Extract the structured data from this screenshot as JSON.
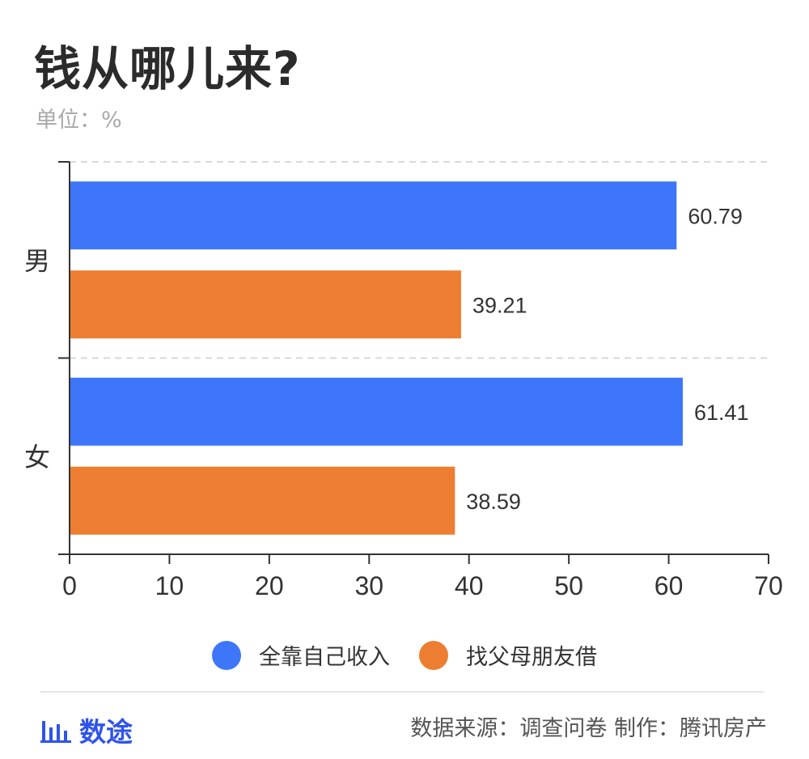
{
  "title": "钱从哪儿来?",
  "subtitle": "单位：%",
  "colors": {
    "series1": "#3e76fa",
    "series2": "#ed7d31",
    "axis": "#333333",
    "grid": "#d9d9d9"
  },
  "legend": [
    {
      "label": "全靠自己收入",
      "color": "#3e76fa"
    },
    {
      "label": "找父母朋友借",
      "color": "#ed7d31"
    }
  ],
  "footer": {
    "brand_icon": "bar-chart-icon",
    "brand": "数途",
    "note": "数据来源：调查问卷  制作：腾讯房产"
  },
  "chart_data": {
    "type": "bar",
    "orientation": "horizontal",
    "categories": [
      "男",
      "女"
    ],
    "series": [
      {
        "name": "全靠自己收入",
        "values": [
          60.79,
          61.41
        ]
      },
      {
        "name": "找父母朋友借",
        "values": [
          39.21,
          38.59
        ]
      }
    ],
    "xlim": [
      0,
      70
    ],
    "xticks": [
      0,
      10,
      20,
      30,
      40,
      50,
      60,
      70
    ],
    "legend_position": "bottom"
  }
}
